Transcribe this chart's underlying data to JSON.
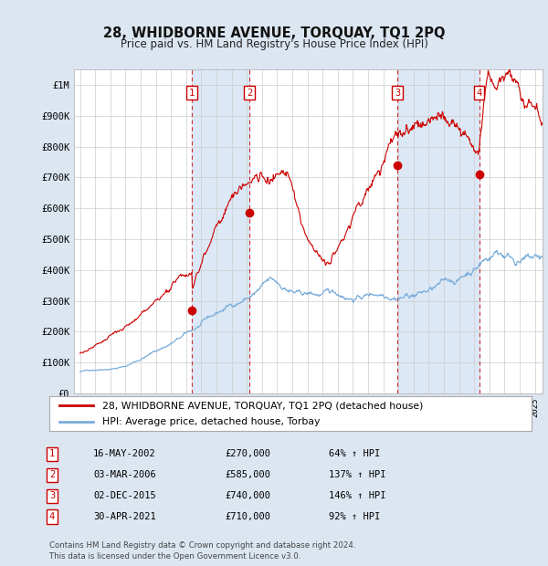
{
  "title": "28, WHIDBORNE AVENUE, TORQUAY, TQ1 2PQ",
  "subtitle": "Price paid vs. HM Land Registry's House Price Index (HPI)",
  "footer": "Contains HM Land Registry data © Crown copyright and database right 2024.\nThis data is licensed under the Open Government Licence v3.0.",
  "legend_line1": "28, WHIDBORNE AVENUE, TORQUAY, TQ1 2PQ (detached house)",
  "legend_line2": "HPI: Average price, detached house, Torbay",
  "sale_color": "#cc0000",
  "hpi_color": "#7aaddb",
  "shade_color": "#dce8f5",
  "background_color": "#dce6f1",
  "plot_bg": "#ffffff",
  "grid_color": "#cccccc",
  "ylim": [
    0,
    1050000
  ],
  "yticks": [
    0,
    100000,
    200000,
    300000,
    400000,
    500000,
    600000,
    700000,
    800000,
    900000,
    1000000
  ],
  "ytick_labels": [
    "£0",
    "£100K",
    "£200K",
    "£300K",
    "£400K",
    "£500K",
    "£600K",
    "£700K",
    "£800K",
    "£900K",
    "£1M"
  ],
  "sale_dates_num": [
    2002.37,
    2006.17,
    2015.92,
    2021.33
  ],
  "sale_prices": [
    270000,
    585000,
    740000,
    710000
  ],
  "sale_labels": [
    "1",
    "2",
    "3",
    "4"
  ],
  "table_rows": [
    [
      "1",
      "16-MAY-2002",
      "£270,000",
      "64% ↑ HPI"
    ],
    [
      "2",
      "03-MAR-2006",
      "£585,000",
      "137% ↑ HPI"
    ],
    [
      "3",
      "02-DEC-2015",
      "£740,000",
      "146% ↑ HPI"
    ],
    [
      "4",
      "30-APR-2021",
      "£710,000",
      "92% ↑ HPI"
    ]
  ]
}
